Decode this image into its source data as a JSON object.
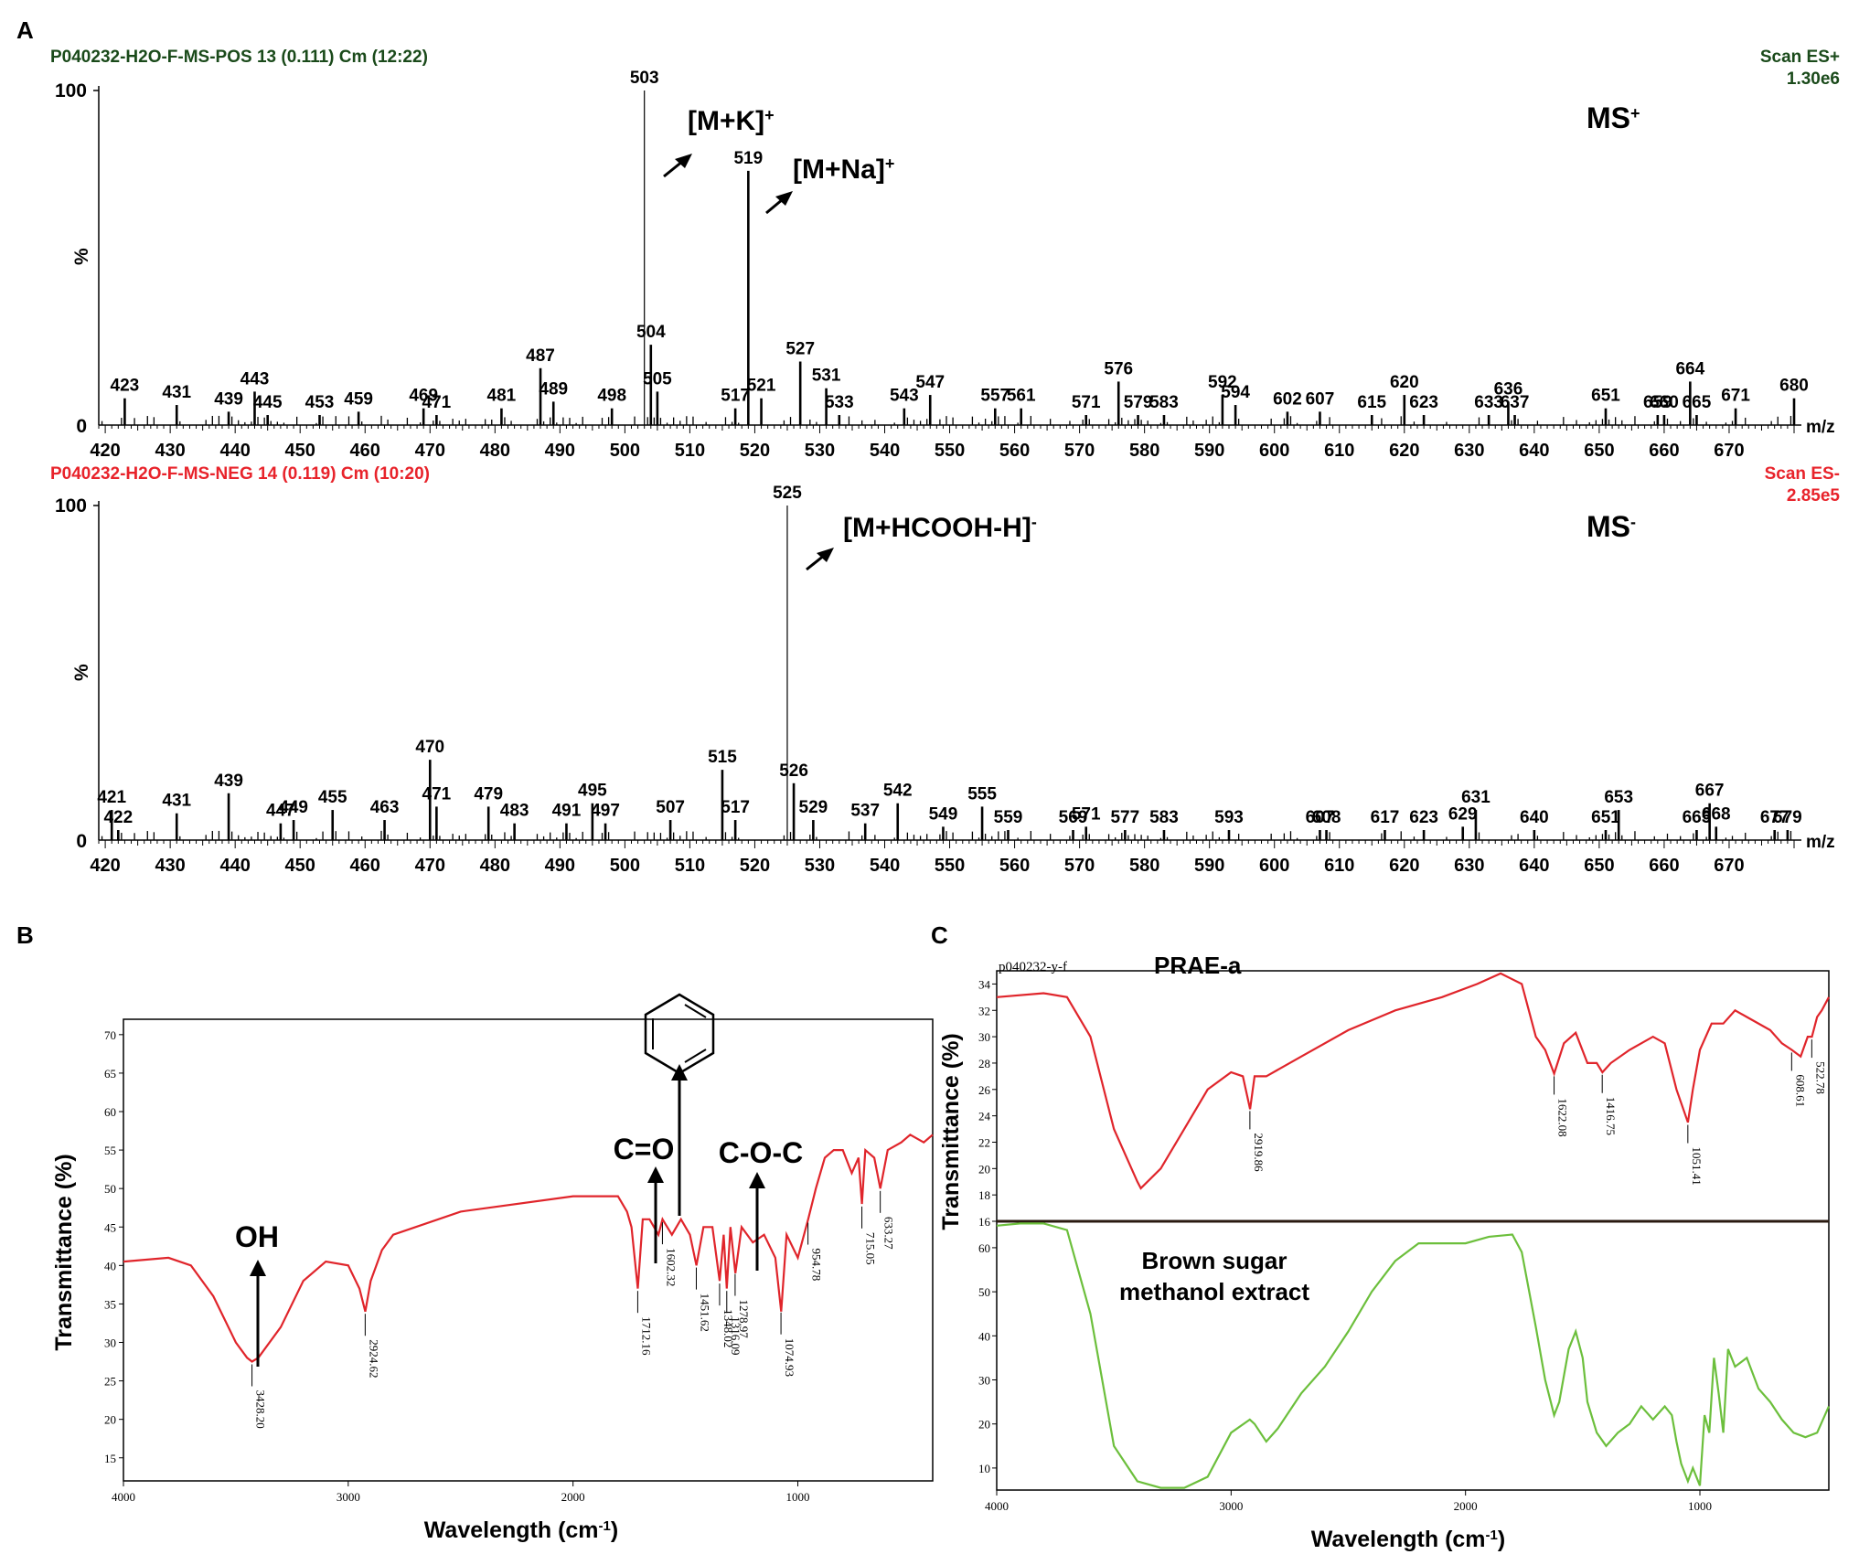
{
  "colors": {
    "pos": "#1a4a1a",
    "neg": "#e8232b",
    "ir": "#e0252b",
    "green": "#6cbf3c",
    "axis": "#000000"
  },
  "panels": {
    "a": "A",
    "b": "B",
    "c": "C"
  },
  "chart_data": [
    {
      "type": "bar",
      "name": "ms-positive",
      "header_left": "P040232-H2O-F-MS-POS 13 (0.111) Cm (12:22)",
      "header_right": [
        "Scan ES+",
        "1.30e6"
      ],
      "ylabel": "%",
      "ytick": "100",
      "y0": "0",
      "xunit": "m/z",
      "mode": "MS",
      "mode_sup": "+",
      "xlim": [
        419,
        680
      ],
      "ylim": [
        0,
        100
      ],
      "xticks": [
        420,
        430,
        440,
        450,
        460,
        470,
        480,
        490,
        500,
        510,
        520,
        530,
        540,
        550,
        560,
        570,
        580,
        590,
        600,
        610,
        620,
        630,
        640,
        650,
        660,
        670
      ],
      "peaks": [
        [
          423,
          8
        ],
        [
          431,
          6
        ],
        [
          439,
          4
        ],
        [
          443,
          10
        ],
        [
          445,
          3
        ],
        [
          453,
          3
        ],
        [
          459,
          4
        ],
        [
          469,
          5
        ],
        [
          471,
          3
        ],
        [
          481,
          5
        ],
        [
          487,
          17
        ],
        [
          489,
          7
        ],
        [
          498,
          5
        ],
        [
          503,
          100
        ],
        [
          504,
          24
        ],
        [
          505,
          10
        ],
        [
          517,
          5
        ],
        [
          519,
          76
        ],
        [
          521,
          8
        ],
        [
          527,
          19
        ],
        [
          531,
          11
        ],
        [
          533,
          3
        ],
        [
          543,
          5
        ],
        [
          547,
          9
        ],
        [
          557,
          5
        ],
        [
          561,
          5
        ],
        [
          571,
          3
        ],
        [
          576,
          13
        ],
        [
          579,
          3
        ],
        [
          583,
          3
        ],
        [
          592,
          9
        ],
        [
          594,
          6
        ],
        [
          602,
          4
        ],
        [
          607,
          4
        ],
        [
          615,
          3
        ],
        [
          620,
          9
        ],
        [
          623,
          3
        ],
        [
          633,
          3
        ],
        [
          636,
          7
        ],
        [
          637,
          3
        ],
        [
          651,
          5
        ],
        [
          659,
          3
        ],
        [
          660,
          3
        ],
        [
          664,
          13
        ],
        [
          665,
          3
        ],
        [
          671,
          5
        ],
        [
          680,
          8
        ]
      ],
      "annotations": [
        {
          "text": "[M+K]",
          "sup": "+"
        },
        {
          "text": "[M+Na]",
          "sup": "+"
        }
      ]
    },
    {
      "type": "bar",
      "name": "ms-negative",
      "header_left": "P040232-H2O-F-MS-NEG 14 (0.119) Cm (10:20)",
      "header_right": [
        "Scan ES-",
        "2.85e5"
      ],
      "ylabel": "%",
      "ytick": "100",
      "y0": "0",
      "xunit": "m/z",
      "mode": "MS",
      "mode_sup": "-",
      "xlim": [
        419,
        680
      ],
      "ylim": [
        0,
        100
      ],
      "xticks": [
        420,
        430,
        440,
        450,
        460,
        470,
        480,
        490,
        500,
        510,
        520,
        530,
        540,
        550,
        560,
        570,
        580,
        590,
        600,
        610,
        620,
        630,
        640,
        650,
        660,
        670
      ],
      "peaks": [
        [
          421,
          9
        ],
        [
          422,
          3
        ],
        [
          431,
          8
        ],
        [
          439,
          14
        ],
        [
          447,
          5
        ],
        [
          449,
          6
        ],
        [
          455,
          9
        ],
        [
          463,
          6
        ],
        [
          470,
          24
        ],
        [
          471,
          10
        ],
        [
          479,
          10
        ],
        [
          483,
          5
        ],
        [
          491,
          5
        ],
        [
          495,
          11
        ],
        [
          497,
          5
        ],
        [
          507,
          6
        ],
        [
          515,
          21
        ],
        [
          517,
          6
        ],
        [
          525,
          100
        ],
        [
          526,
          17
        ],
        [
          529,
          6
        ],
        [
          537,
          5
        ],
        [
          542,
          11
        ],
        [
          549,
          4
        ],
        [
          555,
          10
        ],
        [
          559,
          3
        ],
        [
          569,
          3
        ],
        [
          571,
          4
        ],
        [
          577,
          3
        ],
        [
          583,
          3
        ],
        [
          593,
          3
        ],
        [
          607,
          3
        ],
        [
          608,
          3
        ],
        [
          617,
          3
        ],
        [
          623,
          3
        ],
        [
          629,
          4
        ],
        [
          631,
          9
        ],
        [
          640,
          3
        ],
        [
          651,
          3
        ],
        [
          653,
          9
        ],
        [
          665,
          3
        ],
        [
          667,
          11
        ],
        [
          668,
          4
        ],
        [
          677,
          3
        ],
        [
          679,
          3
        ]
      ],
      "annotations": [
        {
          "text": "[M+HCOOH-H]",
          "sup": "-"
        }
      ]
    },
    {
      "type": "line",
      "name": "ir-b",
      "xlabel": "Wavelength (cm",
      "xlabel_sup": "-1",
      "xlabel_close": ")",
      "ylabel": "Transmittance (%)",
      "xlim": [
        4000,
        400
      ],
      "ylim": [
        12,
        72
      ],
      "xticks": [
        4000,
        3000,
        2000,
        1000
      ],
      "yticks": [
        15,
        20,
        25,
        30,
        35,
        40,
        45,
        50,
        55,
        60,
        65,
        70
      ],
      "series": [
        {
          "x": [
            4000,
            3800,
            3700,
            3600,
            3500,
            3450,
            3428,
            3400,
            3300,
            3200,
            3100,
            3000,
            2950,
            2924,
            2900,
            2850,
            2800,
            2500,
            2000,
            1800,
            1760,
            1740,
            1712,
            1690,
            1660,
            1620,
            1602,
            1560,
            1520,
            1480,
            1451,
            1420,
            1380,
            1348,
            1330,
            1316,
            1300,
            1278,
            1250,
            1200,
            1150,
            1100,
            1074,
            1050,
            1000,
            954,
            920,
            880,
            840,
            800,
            760,
            730,
            715,
            700,
            660,
            633,
            600,
            540,
            500,
            440,
            400
          ],
          "y": [
            40.5,
            41,
            40,
            36,
            30,
            28,
            27.5,
            28,
            32,
            38,
            40.5,
            40,
            37,
            34,
            38,
            42,
            44,
            47,
            49,
            49,
            47,
            45,
            37,
            46,
            46,
            44,
            46,
            44,
            46,
            44,
            40,
            45,
            45,
            38,
            44,
            37,
            45,
            39,
            45,
            43,
            44,
            41,
            34,
            44,
            41,
            46,
            50,
            54,
            55,
            55,
            52,
            54,
            48,
            55,
            54,
            50,
            55,
            56,
            57,
            56,
            57
          ]
        }
      ],
      "labels": [
        "3428.20",
        "2924.62",
        "1712.16",
        "1602.32",
        "1451.62",
        "1348.02",
        "1316.09",
        "1278.97",
        "1074.93",
        "954.78",
        "715.05",
        "633.27"
      ],
      "annotations": [
        "OH",
        "C=O",
        "C-O-C"
      ]
    },
    {
      "type": "line",
      "name": "ir-c",
      "xlabel": "Wavelength (cm",
      "xlabel_sup": "-1",
      "xlabel_close": ")",
      "ylabel": "Transmittance (%)",
      "xlim": [
        4000,
        450
      ],
      "xticks": [
        4000,
        3000,
        2000,
        1000
      ],
      "header": "p040232-y-f",
      "top": {
        "name": "PRAE-a",
        "ylim": [
          16,
          35
        ],
        "yticks": [
          16,
          18,
          20,
          22,
          24,
          26,
          28,
          30,
          32,
          34
        ],
        "x": [
          4000,
          3800,
          3700,
          3600,
          3500,
          3400,
          3385,
          3300,
          3200,
          3100,
          3000,
          2950,
          2919,
          2900,
          2850,
          2700,
          2500,
          2300,
          2100,
          1950,
          1850,
          1760,
          1700,
          1660,
          1622,
          1580,
          1530,
          1480,
          1440,
          1416,
          1380,
          1300,
          1250,
          1200,
          1150,
          1100,
          1051,
          1030,
          1000,
          950,
          900,
          850,
          800,
          700,
          650,
          608,
          570,
          540,
          522,
          500,
          480,
          450
        ],
        "y": [
          33,
          33.3,
          33,
          30,
          23,
          19,
          18.5,
          20,
          23,
          26,
          27.3,
          27,
          24.5,
          27,
          27,
          28.5,
          30.5,
          32,
          33,
          34,
          34.8,
          34,
          30,
          29,
          27.2,
          29.5,
          30.3,
          28,
          28,
          27.3,
          28,
          29,
          29.5,
          30,
          29.5,
          26,
          23.5,
          26,
          29,
          31,
          31,
          32,
          31.5,
          30.5,
          29.5,
          29,
          28.5,
          30,
          30,
          31.5,
          32,
          33
        ]
      },
      "bottom": {
        "name": "Brown sugar methanol extract",
        "ylim": [
          5,
          66
        ],
        "yticks": [
          10,
          20,
          30,
          40,
          50,
          60
        ],
        "x": [
          4000,
          3900,
          3800,
          3700,
          3600,
          3500,
          3400,
          3300,
          3200,
          3100,
          3000,
          2920,
          2900,
          2850,
          2800,
          2700,
          2600,
          2500,
          2400,
          2300,
          2200,
          2100,
          2000,
          1900,
          1800,
          1760,
          1700,
          1660,
          1622,
          1600,
          1560,
          1530,
          1500,
          1480,
          1440,
          1400,
          1350,
          1300,
          1250,
          1200,
          1150,
          1120,
          1100,
          1080,
          1051,
          1030,
          1000,
          980,
          960,
          940,
          920,
          900,
          880,
          850,
          800,
          750,
          700,
          650,
          600,
          550,
          500,
          450
        ],
        "y": [
          65,
          65.5,
          65.5,
          64,
          45,
          15,
          7,
          5.5,
          5.5,
          8,
          18,
          21,
          20,
          16,
          19,
          27,
          33,
          41,
          50,
          57,
          61,
          61,
          61,
          62.5,
          63,
          59,
          42,
          30,
          22,
          25,
          37,
          41,
          35,
          25,
          18,
          15,
          18,
          20,
          24,
          21,
          24,
          22,
          16,
          11,
          7,
          10,
          6,
          22,
          18,
          35,
          27,
          18,
          37,
          33,
          35,
          28,
          25,
          21,
          18,
          17,
          18,
          24
        ]
      }
    }
  ]
}
